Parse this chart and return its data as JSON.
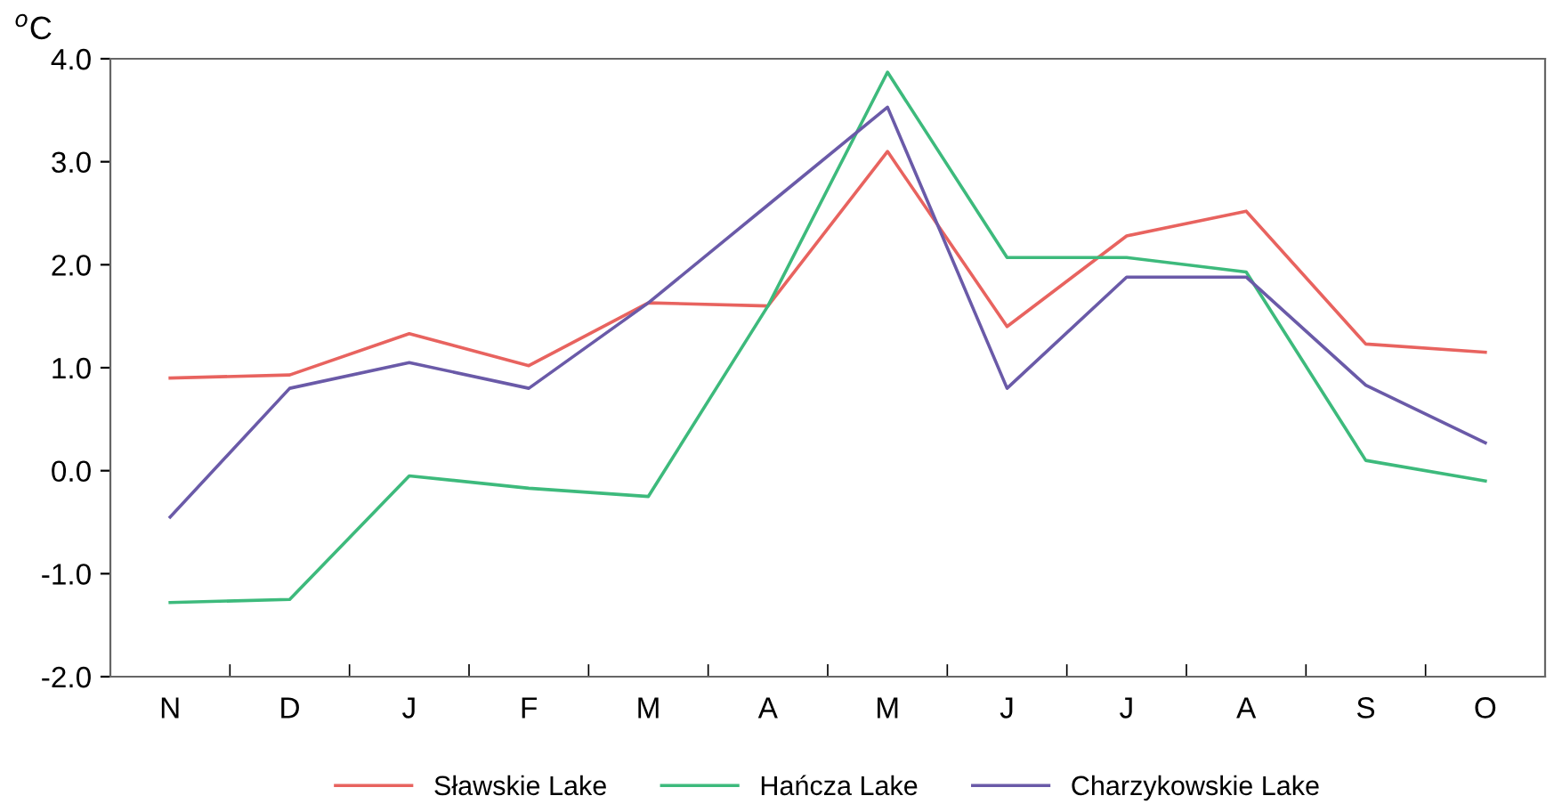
{
  "chart_data": {
    "type": "line",
    "ylabel": "$^{o}$C",
    "categories": [
      "N",
      "D",
      "J",
      "F",
      "M",
      "A",
      "M",
      "J",
      "J",
      "A",
      "S",
      "O"
    ],
    "series": [
      {
        "name": "Sławskie Lake",
        "color": "#e8635f",
        "values": [
          0.9,
          0.93,
          1.33,
          1.02,
          1.63,
          1.6,
          3.1,
          1.4,
          2.28,
          2.52,
          1.23,
          1.15
        ]
      },
      {
        "name": "Hańcza Lake",
        "color": "#3dba7c",
        "values": [
          -1.28,
          -1.25,
          -0.05,
          -0.17,
          -0.25,
          1.6,
          3.87,
          2.07,
          2.07,
          1.93,
          0.1,
          -0.1
        ]
      },
      {
        "name": "Charzykowskie Lake",
        "color": "#6a5aa8",
        "values": [
          -0.45,
          0.8,
          1.05,
          0.8,
          1.63,
          2.58,
          3.53,
          0.8,
          1.88,
          1.88,
          0.83,
          0.27
        ]
      }
    ],
    "ylim": [
      -2,
      4
    ],
    "yticks": [
      {
        "value": -2,
        "label": "-2.0"
      },
      {
        "value": -1,
        "label": "-1.0"
      },
      {
        "value": 0,
        "label": "0.0"
      },
      {
        "value": 1,
        "label": "1.0"
      },
      {
        "value": 2,
        "label": "2.0"
      },
      {
        "value": 3,
        "label": "3.0"
      },
      {
        "value": 4,
        "label": "4.0"
      }
    ],
    "grid": false,
    "legend": "bottom",
    "marker": "none",
    "line_style": "solid"
  }
}
